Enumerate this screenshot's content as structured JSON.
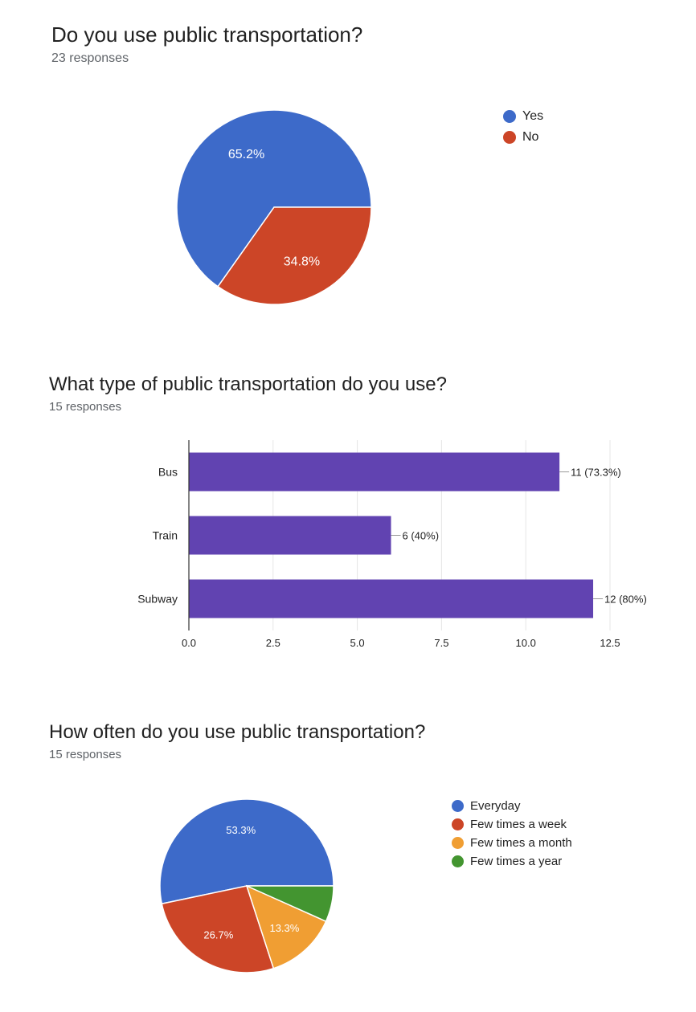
{
  "charts": [
    {
      "question": "Do you use public transportation?",
      "responses": "23 responses"
    },
    {
      "question": "What type of public transportation do you use?",
      "responses": "15 responses"
    },
    {
      "question": "How often do you use public transportation?",
      "responses": "15 responses"
    }
  ],
  "chart_data": [
    {
      "type": "pie",
      "title": "Do you use public transportation?",
      "labels": [
        "Yes",
        "No"
      ],
      "values": [
        65.2,
        34.8
      ],
      "slice_labels": [
        "65.2%",
        "34.8%"
      ],
      "colors": [
        "#3d6ac9",
        "#cc4527"
      ],
      "legend": "right"
    },
    {
      "type": "bar",
      "orientation": "horizontal",
      "title": "What type of public transportation do you use?",
      "categories": [
        "Bus",
        "Train",
        "Subway"
      ],
      "values": [
        11,
        6,
        12
      ],
      "data_labels": [
        "11 (73.3%)",
        "6 (40%)",
        "12 (80%)"
      ],
      "xlim": [
        0,
        12.5
      ],
      "ticks": [
        "0.0",
        "2.5",
        "5.0",
        "7.5",
        "10.0",
        "12.5"
      ],
      "color": "#6143b1",
      "grid": true
    },
    {
      "type": "pie",
      "title": "How often do you use public transportation?",
      "labels": [
        "Everyday",
        "Few times a week",
        "Few times a month",
        "Few times a year"
      ],
      "values": [
        53.3,
        26.7,
        13.3,
        6.7
      ],
      "slice_labels": [
        "53.3%",
        "26.7%",
        "13.3%",
        ""
      ],
      "colors": [
        "#3d6ac9",
        "#cc4527",
        "#f09e33",
        "#439530"
      ],
      "legend": "right"
    }
  ]
}
